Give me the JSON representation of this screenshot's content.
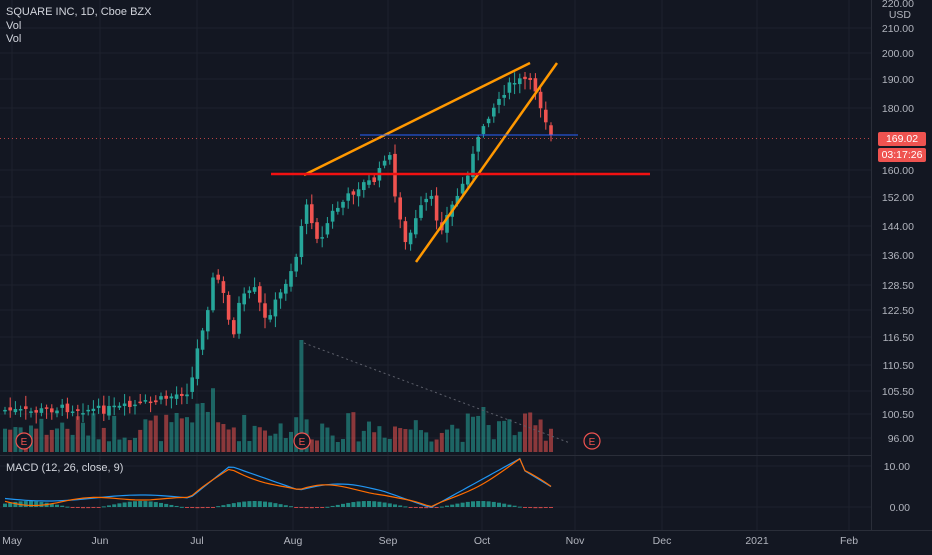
{
  "header": {
    "symbol_title": "SQUARE INC, 1D, Cboe BZX",
    "vol_label_1": "Vol",
    "vol_label_2": "Vol"
  },
  "price_axis": {
    "currency": "USD",
    "top_clipped": "220.00",
    "ticks": [
      "210.00",
      "200.00",
      "190.00",
      "180.00",
      "169.02",
      "160.00",
      "152.00",
      "144.00",
      "136.00",
      "128.50",
      "122.50",
      "116.50",
      "110.50",
      "105.50",
      "100.50",
      "96.00"
    ],
    "current_price": "169.02",
    "countdown": "03:17:26"
  },
  "time_axis": {
    "labels": [
      "May",
      "Jun",
      "Jul",
      "Aug",
      "Sep",
      "Oct",
      "Nov",
      "Dec",
      "2021",
      "Feb"
    ]
  },
  "macd": {
    "label": "MACD (12, 26, close, 9)",
    "ticks": [
      "10.00",
      "0.00"
    ]
  },
  "earnings_markers": [
    {
      "label": "E"
    },
    {
      "label": "E"
    },
    {
      "label": "E"
    }
  ],
  "colors": {
    "background": "#131722",
    "up": "#26a69a",
    "down": "#ef5350",
    "wedge": "#ff9800",
    "support": "#f21111",
    "macd_line": "#2196f3",
    "signal_line": "#ff6d00"
  }
}
